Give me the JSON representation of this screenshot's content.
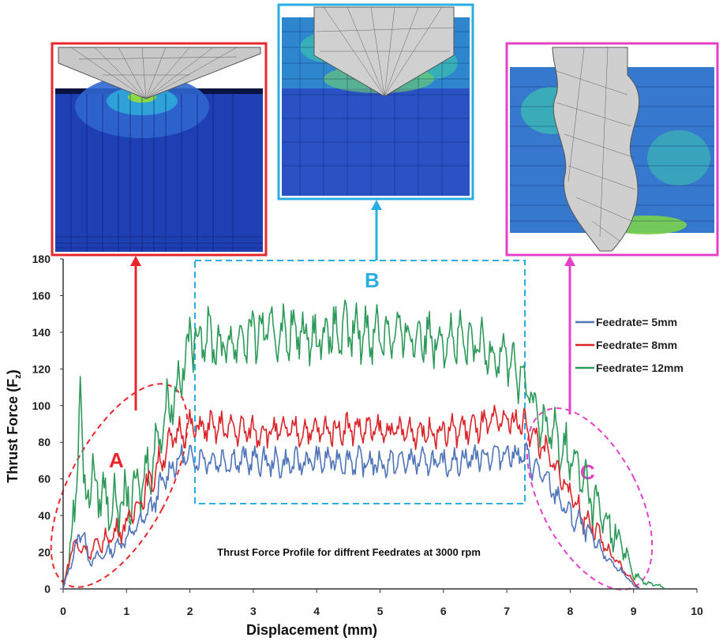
{
  "colors": {
    "series_5": "#4f74b8",
    "series_8": "#d9262b",
    "series_12": "#2e9a5a",
    "region_a": "#e8272c",
    "region_b": "#29aee3",
    "region_c": "#e541c8",
    "mesh_blue": "#1f3fb5",
    "tool_gray": "#9a9a9a"
  },
  "icons": {
    "inset_a": "fea-stress-contour-initial-entry",
    "inset_b": "fea-stress-contour-steady-drilling",
    "inset_c": "fea-stress-contour-drill-exit"
  },
  "annotations": {
    "region_a": "A",
    "region_b": "B",
    "region_c": "C"
  },
  "chart_data": {
    "type": "line",
    "title": "Thrust Force Profile for diffrent Feedrates at 3000 rpm",
    "xlabel": "Displacement (mm)",
    "ylabel_main": "Thrust Force (F",
    "ylabel_sub": "z",
    "ylabel_close": ")",
    "xlim": [
      0,
      10
    ],
    "ylim": [
      0,
      180
    ],
    "xticks": [
      "0",
      "1",
      "2",
      "3",
      "4",
      "5",
      "6",
      "7",
      "8",
      "9",
      "10"
    ],
    "yticks": [
      "0",
      "20",
      "40",
      "60",
      "80",
      "100",
      "120",
      "140",
      "160",
      "180"
    ],
    "legend_position": "right",
    "series": [
      {
        "name": "Feedrate= 5mm",
        "color": "#4f74b8",
        "x": [
          0,
          0.1,
          0.2,
          0.3,
          0.4,
          0.6,
          0.8,
          1.0,
          1.2,
          1.4,
          1.6,
          1.8,
          2.0,
          2.5,
          3.0,
          3.5,
          4.0,
          4.5,
          5.0,
          5.5,
          6.0,
          6.5,
          7.0,
          7.3,
          7.6,
          7.8,
          8.0,
          8.2,
          8.4,
          8.6,
          8.8,
          9.0,
          9.1
        ],
        "y": [
          0,
          12,
          22,
          35,
          15,
          18,
          22,
          28,
          35,
          45,
          60,
          70,
          72,
          70,
          70,
          68,
          70,
          70,
          68,
          70,
          68,
          72,
          74,
          72,
          60,
          50,
          40,
          34,
          25,
          16,
          10,
          2,
          0
        ],
        "ripple": 8
      },
      {
        "name": "Feedrate= 8mm",
        "color": "#d9262b",
        "x": [
          0,
          0.1,
          0.2,
          0.3,
          0.4,
          0.6,
          0.8,
          1.0,
          1.2,
          1.4,
          1.6,
          1.8,
          2.0,
          2.5,
          3.0,
          3.5,
          4.0,
          4.5,
          5.0,
          5.5,
          6.0,
          6.5,
          7.0,
          7.3,
          7.6,
          7.8,
          8.0,
          8.2,
          8.4,
          8.6,
          8.8,
          9.0,
          9.1
        ],
        "y": [
          0,
          18,
          25,
          22,
          20,
          25,
          30,
          35,
          48,
          60,
          75,
          85,
          88,
          88,
          86,
          86,
          86,
          88,
          86,
          86,
          86,
          88,
          92,
          90,
          75,
          65,
          52,
          40,
          32,
          20,
          12,
          4,
          0
        ],
        "ripple": 9
      },
      {
        "name": "Feedrate= 12mm",
        "color": "#2e9a5a",
        "x": [
          0,
          0.1,
          0.2,
          0.27,
          0.32,
          0.45,
          0.6,
          0.8,
          1.0,
          1.2,
          1.4,
          1.6,
          1.8,
          2.0,
          2.2,
          2.5,
          3.0,
          3.5,
          4.0,
          4.5,
          5.0,
          5.5,
          6.0,
          6.5,
          7.0,
          7.3,
          7.5,
          7.7,
          8.0,
          8.2,
          8.4,
          8.6,
          8.8,
          9.0,
          9.2,
          9.4,
          9.5
        ],
        "y": [
          0,
          20,
          45,
          125,
          50,
          60,
          52,
          45,
          48,
          55,
          70,
          95,
          110,
          135,
          140,
          132,
          140,
          140,
          138,
          140,
          140,
          138,
          138,
          132,
          128,
          110,
          95,
          85,
          72,
          60,
          45,
          35,
          25,
          8,
          3,
          2,
          0
        ],
        "ripple": 16
      }
    ]
  }
}
